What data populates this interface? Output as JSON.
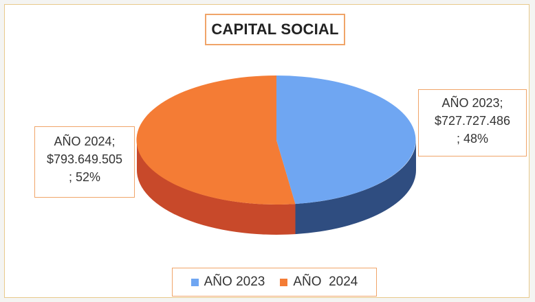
{
  "chart_data": {
    "type": "pie",
    "title": "CAPITAL SOCIAL",
    "legend_position": "bottom",
    "slices": [
      {
        "name": "AÑO 2023",
        "value": 727727486,
        "percent": 48,
        "color": "#6fa6f2",
        "side_color": "#2f4d80",
        "label_lines": [
          "AÑO 2023;",
          "$727.727.486",
          "; 48%"
        ]
      },
      {
        "name": "AÑO  2024",
        "value": 793649505,
        "percent": 52,
        "color": "#f47c35",
        "side_color": "#c8492a",
        "label_lines": [
          "AÑO  2024;",
          "$793.649.505",
          "; 52%"
        ]
      }
    ]
  }
}
